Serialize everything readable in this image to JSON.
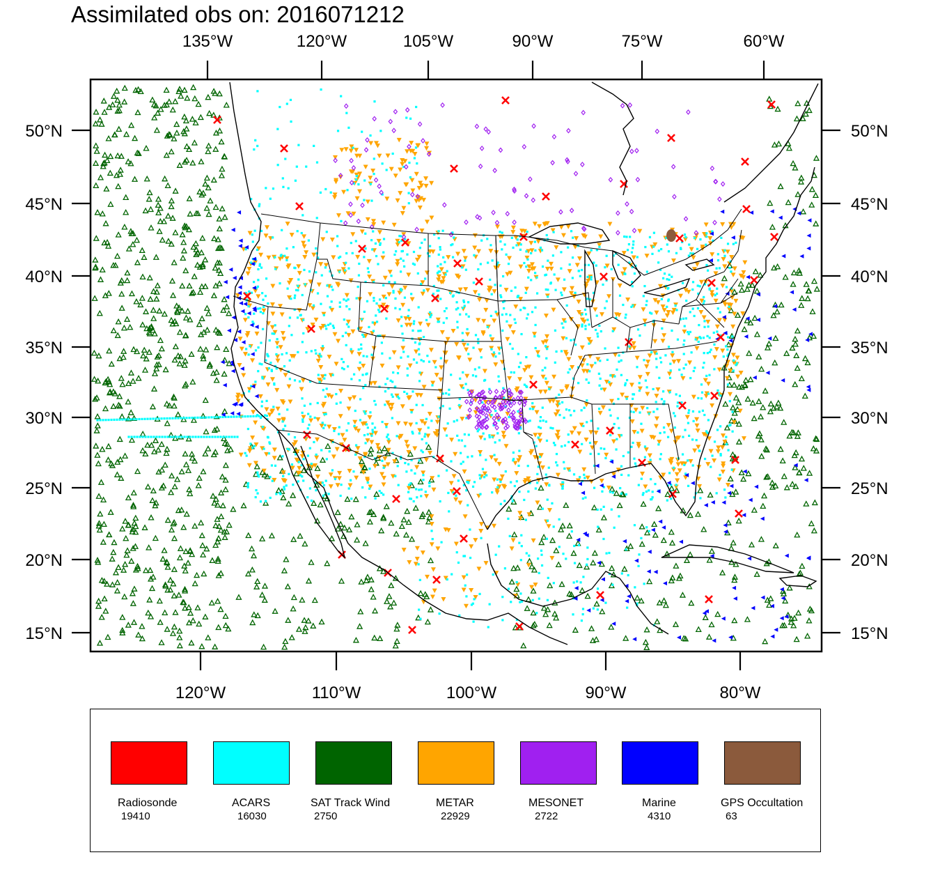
{
  "title": "Assimilated obs on: 2016071212",
  "top_axis_labels": [
    "135°W",
    "120°W",
    "105°W",
    "90°W",
    "75°W",
    "60°W"
  ],
  "bottom_axis_labels": [
    "120°W",
    "110°W",
    "100°W",
    "90°W",
    "80°W"
  ],
  "lat_labels": [
    "50°N",
    "45°N",
    "40°N",
    "35°N",
    "30°N",
    "25°N",
    "20°N",
    "15°N"
  ],
  "legend": [
    {
      "name": "Radiosonde",
      "count": "19410",
      "color": "#ff0000",
      "marker": "x-icon"
    },
    {
      "name": "ACARS",
      "count": "16030",
      "color": "#00ffff",
      "marker": "square-dot-icon"
    },
    {
      "name": "SAT Track Wind",
      "count": "2750",
      "color": "#006400",
      "marker": "triangle-up-icon"
    },
    {
      "name": "METAR",
      "count": "22929",
      "color": "#ffa500",
      "marker": "triangle-down-icon"
    },
    {
      "name": "MESONET",
      "count": "2722",
      "color": "#a020f0",
      "marker": "diamond-icon"
    },
    {
      "name": "Marine",
      "count": "4310",
      "color": "#0000ff",
      "marker": "triangle-left-icon"
    },
    {
      "name": "GPS Occultation",
      "count": "63",
      "color": "#8b5a3c",
      "marker": "circle-icon"
    }
  ]
}
